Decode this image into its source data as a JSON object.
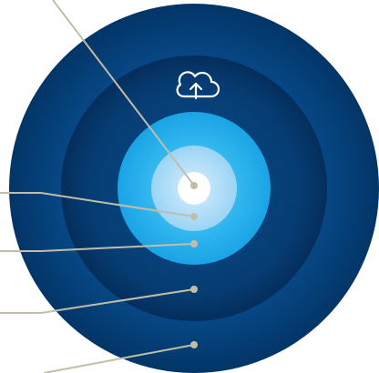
{
  "diagram": {
    "rings": [
      {
        "name": "outer-ring",
        "color": "#04386f"
      },
      {
        "name": "middle-ring",
        "color": "#0a4f8e"
      },
      {
        "name": "inner-ring",
        "color": "#29b1ec"
      },
      {
        "name": "light-ring",
        "color": "#a9daf6"
      },
      {
        "name": "center-core",
        "color": "#ffffff"
      }
    ],
    "icon": "cloud-upload-icon",
    "leader_line_color": "#c2bda8",
    "leader_dot_color": "#c2bda8"
  }
}
